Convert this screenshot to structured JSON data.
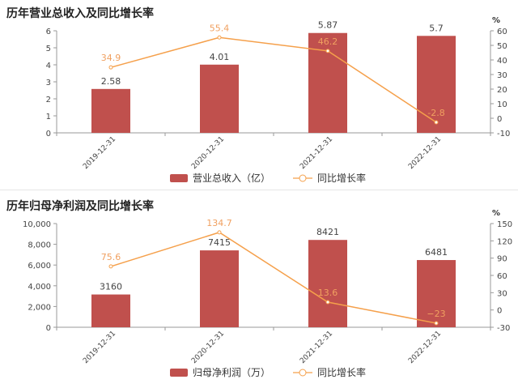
{
  "chart_data": [
    {
      "type": "bar",
      "title": "历年营业总收入及同比增长率",
      "categories": [
        "2019-12-31",
        "2020-12-31",
        "2021-12-31",
        "2022-12-31"
      ],
      "series": [
        {
          "name": "营业总收入（亿）",
          "type": "bar",
          "axis": "left",
          "values": [
            2.58,
            4.01,
            5.87,
            5.7
          ],
          "labels": [
            "2.58",
            "4.01",
            "5.87",
            "5.7"
          ]
        },
        {
          "name": "同比增长率",
          "type": "line",
          "axis": "right",
          "values": [
            34.9,
            55.4,
            46.2,
            -2.8
          ],
          "labels": [
            "34.9",
            "55.4",
            "46.2",
            "-2.8"
          ]
        }
      ],
      "y_left": {
        "ylim": [
          0,
          6
        ],
        "ticks": [
          "0",
          "1",
          "2",
          "3",
          "4",
          "5",
          "6"
        ]
      },
      "y_right": {
        "ylim": [
          -10,
          60
        ],
        "ticks": [
          "-10",
          "0",
          "10",
          "20",
          "30",
          "40",
          "50",
          "60"
        ],
        "unit": "%"
      },
      "legend_position": "bottom-center",
      "colors": {
        "bar": "#c0504d",
        "line": "#f5a04b",
        "label_line": "#f0a060",
        "axis": "#999999"
      }
    },
    {
      "type": "bar",
      "title": "历年归母净利润及同比增长率",
      "categories": [
        "2019-12-31",
        "2020-12-31",
        "2021-12-31",
        "2022-12-31"
      ],
      "series": [
        {
          "name": "归母净利润（万）",
          "type": "bar",
          "axis": "left",
          "values": [
            3160,
            7415,
            8421,
            6481
          ],
          "labels": [
            "3160",
            "7415",
            "8421",
            "6481"
          ]
        },
        {
          "name": "同比增长率",
          "type": "line",
          "axis": "right",
          "values": [
            75.6,
            134.7,
            13.6,
            -23
          ],
          "labels": [
            "75.6",
            "134.7",
            "13.6",
            "−23"
          ]
        }
      ],
      "y_left": {
        "ylim": [
          0,
          10000
        ],
        "ticks": [
          "0",
          "2,000",
          "4,000",
          "6,000",
          "8,000",
          "10,000"
        ]
      },
      "y_right": {
        "ylim": [
          -30,
          150
        ],
        "ticks": [
          "-30",
          "0",
          "30",
          "60",
          "90",
          "120",
          "150"
        ],
        "unit": "%"
      },
      "legend_position": "bottom-center",
      "colors": {
        "bar": "#c0504d",
        "line": "#f5a04b",
        "label_line": "#f0a060",
        "axis": "#999999"
      }
    }
  ]
}
